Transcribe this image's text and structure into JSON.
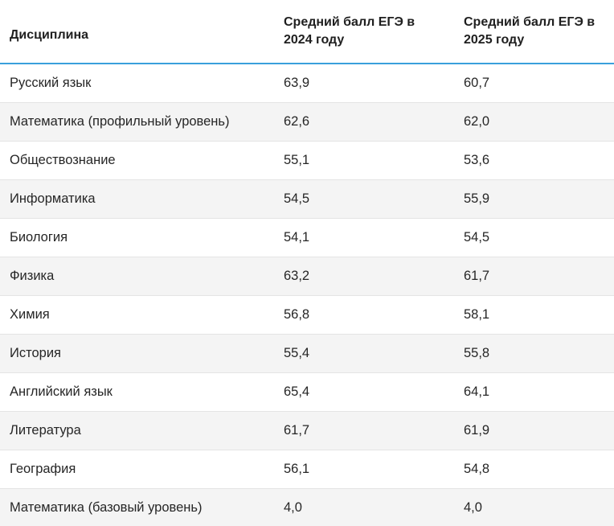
{
  "table": {
    "headers": [
      "Дисциплина",
      "Средний балл ЕГЭ в 2024 году",
      "Средний балл ЕГЭ в 2025 году"
    ],
    "rows": [
      [
        "Русский язык",
        "63,9",
        "60,7"
      ],
      [
        "Математика (профильный уровень)",
        "62,6",
        "62,0"
      ],
      [
        "Обществознание",
        "55,1",
        "53,6"
      ],
      [
        "Информатика",
        "54,5",
        "55,9"
      ],
      [
        "Биология",
        "54,1",
        "54,5"
      ],
      [
        "Физика",
        "63,2",
        "61,7"
      ],
      [
        "Химия",
        "56,8",
        "58,1"
      ],
      [
        "История",
        "55,4",
        "55,8"
      ],
      [
        "Английский язык",
        "65,4",
        "64,1"
      ],
      [
        "Литература",
        "61,7",
        "61,9"
      ],
      [
        "География",
        "56,1",
        "54,8"
      ],
      [
        "Математика (базовый уровень)",
        "4,0",
        "4,0"
      ]
    ]
  },
  "colors": {
    "header_rule": "#3aa0dc",
    "row_stripe": "#f4f4f4",
    "row_divider": "#e4e4e4"
  }
}
